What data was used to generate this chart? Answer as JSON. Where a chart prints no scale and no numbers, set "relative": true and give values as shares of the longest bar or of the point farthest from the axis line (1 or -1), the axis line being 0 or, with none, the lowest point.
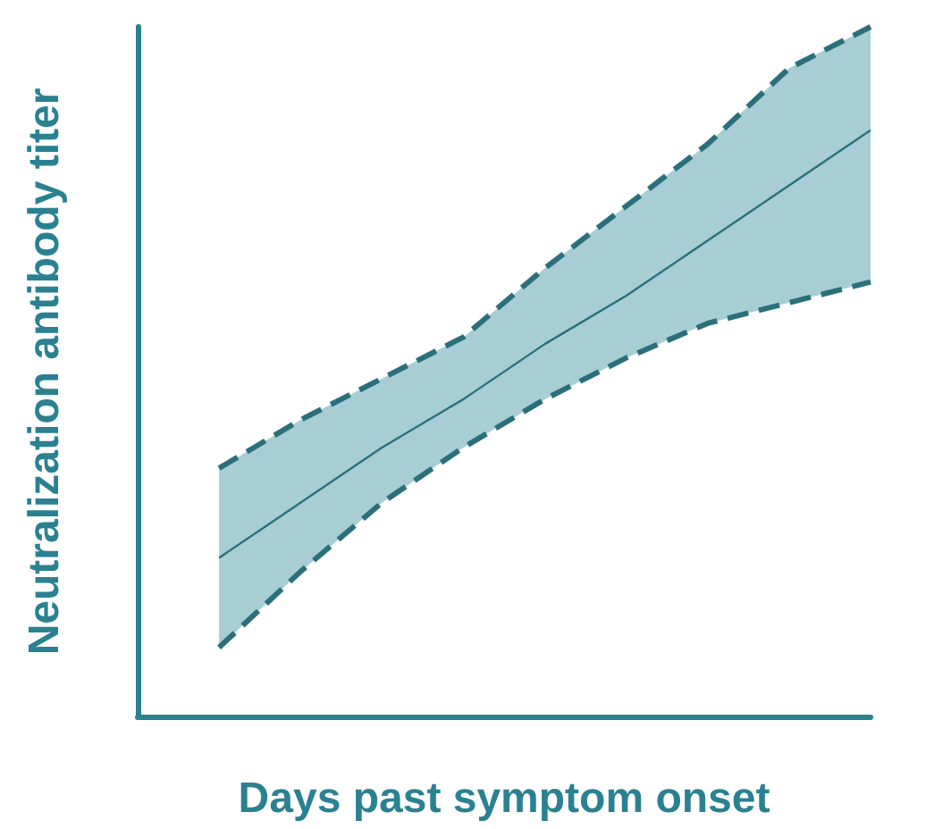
{
  "chart_data": {
    "type": "line",
    "relative": true,
    "xlabel": "Days past symptom onset",
    "ylabel": "Neutralization antibody titer",
    "categories": [
      null,
      null,
      null,
      null,
      null,
      null,
      null,
      null,
      null,
      null
    ],
    "series": [
      {
        "color": "#2b6f7c",
        "line_style": "solid",
        "values": [
          null,
          0.23,
          0.31,
          0.39,
          0.46,
          0.54,
          0.61,
          0.69,
          0.77,
          0.85
        ],
        "lower": [
          null,
          0.1,
          0.21,
          0.31,
          0.39,
          0.46,
          0.52,
          0.57,
          0.6,
          0.63
        ],
        "upper": [
          null,
          0.36,
          0.43,
          0.49,
          0.55,
          0.65,
          0.74,
          0.83,
          0.94,
          1.0
        ]
      },
      {
        "color": "#2b6f7c",
        "line_style": "dashed",
        "values": [
          null,
          0.1,
          0.21,
          0.31,
          0.39,
          0.46,
          0.52,
          0.57,
          0.6,
          0.63
        ]
      },
      {
        "color": "#2b6f7c",
        "line_style": "dashed",
        "values": [
          null,
          0.36,
          0.43,
          0.49,
          0.55,
          0.65,
          0.74,
          0.83,
          0.94,
          1.0
        ]
      }
    ],
    "marker": "none",
    "grid": false
  }
}
